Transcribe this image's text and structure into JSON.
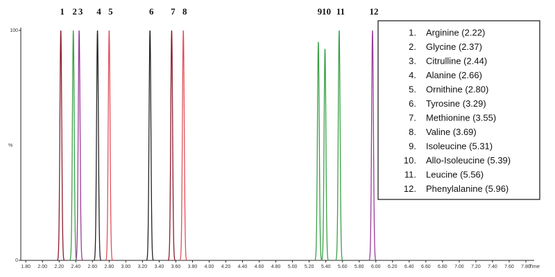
{
  "chart_data": {
    "type": "chromatogram",
    "y_label": "%",
    "x_label": "Time",
    "xlim": [
      1.74,
      7.9
    ],
    "ylim": [
      0,
      100
    ],
    "xticks": [
      {
        "value": 1.8,
        "label": "1.80"
      },
      {
        "value": 2.0,
        "label": "2.00"
      },
      {
        "value": 2.2,
        "label": "2.20"
      },
      {
        "value": 2.4,
        "label": "2.40"
      },
      {
        "value": 2.6,
        "label": "2.60"
      },
      {
        "value": 2.8,
        "label": "2.80"
      },
      {
        "value": 3.0,
        "label": "3.00"
      },
      {
        "value": 3.2,
        "label": "3.20"
      },
      {
        "value": 3.4,
        "label": "3.40"
      },
      {
        "value": 3.6,
        "label": "3.60"
      },
      {
        "value": 3.8,
        "label": "3.80"
      },
      {
        "value": 4.0,
        "label": "4.00"
      },
      {
        "value": 4.2,
        "label": "4.20"
      },
      {
        "value": 4.4,
        "label": "4.40"
      },
      {
        "value": 4.6,
        "label": "4.60"
      },
      {
        "value": 4.8,
        "label": "4.80"
      },
      {
        "value": 5.0,
        "label": "5.00"
      },
      {
        "value": 5.2,
        "label": "5.20"
      },
      {
        "value": 5.4,
        "label": "5.40"
      },
      {
        "value": 5.6,
        "label": "5.60"
      },
      {
        "value": 5.8,
        "label": "5.80"
      },
      {
        "value": 6.0,
        "label": "6.00"
      },
      {
        "value": 6.2,
        "label": "6.20"
      },
      {
        "value": 6.4,
        "label": "6.40"
      },
      {
        "value": 6.6,
        "label": "6.60"
      },
      {
        "value": 6.8,
        "label": "6.80"
      },
      {
        "value": 7.0,
        "label": "7.00"
      },
      {
        "value": 7.2,
        "label": "7.20"
      },
      {
        "value": 7.4,
        "label": "7.40"
      },
      {
        "value": 7.6,
        "label": "7.60"
      },
      {
        "value": 7.8,
        "label": "7.80"
      }
    ],
    "yticks": [
      0,
      100
    ],
    "peaks": {
      "labels": [
        "1",
        "2",
        "3",
        "4",
        "5",
        "6",
        "7",
        "8",
        "9",
        "10",
        "11",
        "12"
      ],
      "x": [
        2.22,
        2.37,
        2.44,
        2.66,
        2.8,
        3.29,
        3.55,
        3.69,
        5.31,
        5.39,
        5.56,
        5.96
      ],
      "values": [
        100,
        100,
        100,
        100,
        100,
        100,
        100,
        100,
        95,
        92,
        100,
        100
      ],
      "colors": [
        "#8b1a2a",
        "#3aa048",
        "#9a3a9a",
        "#222222",
        "#e0505a",
        "#222222",
        "#8b1a2a",
        "#e0505a",
        "#3aa048",
        "#3aa048",
        "#3aa048",
        "#9a3a9a"
      ]
    },
    "legend": [
      {
        "number": "1.",
        "text": "Arginine (2.22)"
      },
      {
        "number": "2.",
        "text": "Glycine (2.37)"
      },
      {
        "number": "3.",
        "text": "Citrulline (2.44)"
      },
      {
        "number": "4.",
        "text": "Alanine (2.66)"
      },
      {
        "number": "5.",
        "text": "Ornithine (2.80)"
      },
      {
        "number": "6.",
        "text": "Tyrosine (3.29)"
      },
      {
        "number": "7.",
        "text": "Methionine (3.55)"
      },
      {
        "number": "8.",
        "text": "Valine (3.69)"
      },
      {
        "number": "9.",
        "text": "Isoleucine (5.31)"
      },
      {
        "number": "10.",
        "text": "Allo-Isoleucine (5.39)"
      },
      {
        "number": "11.",
        "text": "Leucine (5.56)"
      },
      {
        "number": "12.",
        "text": "Phenylalanine (5.96)"
      }
    ]
  }
}
